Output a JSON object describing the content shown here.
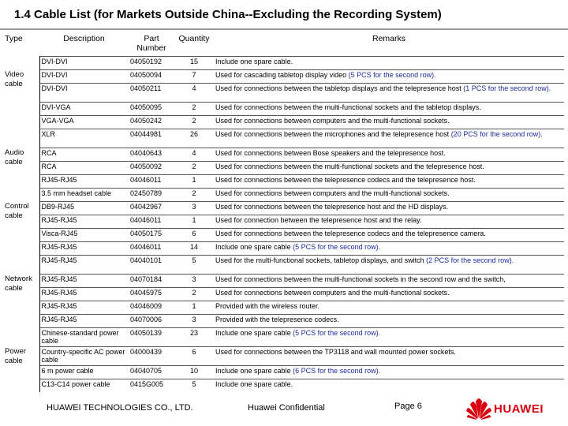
{
  "title": "1.4 Cable List (for Markets Outside China--Excluding the Recording System)",
  "headers": {
    "type": "Type",
    "description": "Description",
    "part_number": "Part Number",
    "quantity": "Quantity",
    "remarks": "Remarks"
  },
  "groups": {
    "video": "Video cable",
    "audio": "Audio cable",
    "control": "Control cable",
    "network": "Network cable",
    "power": "Power cable"
  },
  "rows": [
    {
      "desc": "DVI-DVI",
      "part": "04050192",
      "qty": "15",
      "remarks": "Include one spare cable.",
      "extra": ""
    },
    {
      "desc": "DVI-DVI",
      "part": "04050094",
      "qty": "7",
      "remarks": "Used for cascading tabletop display video ",
      "extra": "(5 PCS for the second row)."
    },
    {
      "desc": "DVI-DVI",
      "part": "04050211",
      "qty": "4",
      "remarks": "Used for connections between the tabletop displays and the telepresence host ",
      "extra": "(1 PCS for the second row)."
    },
    {
      "desc": "DVI-VGA",
      "part": "04050095",
      "qty": "2",
      "remarks": "Used for connections between the multi-functional sockets and the tabletop displays.",
      "extra": ""
    },
    {
      "desc": "VGA-VGA",
      "part": "04050242",
      "qty": "2",
      "remarks": "Used for connections between computers and the multi-functional sockets.",
      "extra": ""
    },
    {
      "desc": "XLR",
      "part": "04044981",
      "qty": "26",
      "remarks": "Used for connections between the microphones and the telepresence host ",
      "extra": "(20 PCS for the second row)."
    },
    {
      "desc": "RCA",
      "part": "04040643",
      "qty": "4",
      "remarks": "Used for connections between Bose speakers and the telepresence host.",
      "extra": ""
    },
    {
      "desc": "RCA",
      "part": "04050092",
      "qty": "2",
      "remarks": "Used for connections between the multi-functional sockets and the telepresence host.",
      "extra": ""
    },
    {
      "desc": "RJ45-RJ45",
      "part": "04046011",
      "qty": "1",
      "remarks": "Used for connections between the telepresence codecs and the telepresence host.",
      "extra": ""
    },
    {
      "desc": "3.5 mm headset cable",
      "part": "02450789",
      "qty": "2",
      "remarks": "Used for connections between computers and the multi-functional sockets.",
      "extra": ""
    },
    {
      "desc": "DB9-RJ45",
      "part": "04042967",
      "qty": "3",
      "remarks": "Used for connections between the telepresence host and the HD displays.",
      "extra": ""
    },
    {
      "desc": "RJ45-RJ45",
      "part": "04046011",
      "qty": "1",
      "remarks": "Used for connection between the telepresence host and the relay.",
      "extra": ""
    },
    {
      "desc": "Visca-RJ45",
      "part": "04050175",
      "qty": "6",
      "remarks": "Used for connections between the telepresence codecs and the telepresence camera.",
      "extra": ""
    },
    {
      "desc": "RJ45-RJ45",
      "part": "04046011",
      "qty": "14",
      "remarks": "Include one spare cable ",
      "extra": "(5 PCS for the second row)."
    },
    {
      "desc": "RJ45-RJ45",
      "part": "04040101",
      "qty": "5",
      "remarks": "Used for the multi-functional sockets, tabletop displays, and switch ",
      "extra": "(2 PCS for the second row)."
    },
    {
      "desc": "RJ45-RJ45",
      "part": "04070184",
      "qty": "3",
      "remarks": "Used for connections between the multi-functional sockets in the second row and the switch,",
      "extra": ""
    },
    {
      "desc": "RJ45-RJ45",
      "part": "04045975",
      "qty": "2",
      "remarks": "Used for connections between computers and the multi-functional sockets.",
      "extra": ""
    },
    {
      "desc": "RJ45-RJ45",
      "part": "04046009",
      "qty": "1",
      "remarks": "Provided with the wireless router.",
      "extra": ""
    },
    {
      "desc": "RJ45-RJ45",
      "part": "04070006",
      "qty": "3",
      "remarks": "Provided with the telepresence codecs.",
      "extra": ""
    },
    {
      "desc": "Chinese-standard power cable",
      "part": "04050139",
      "qty": "23",
      "remarks": "Include one spare cable ",
      "extra": "(5 PCS for the second row)."
    },
    {
      "desc": "Country-specific AC power cable",
      "part": "04000439",
      "qty": "6",
      "remarks": "Used for connections between the TP3118 and wall mounted power sockets.",
      "extra": ""
    },
    {
      "desc": "6 m power cable",
      "part": "04040705",
      "qty": "10",
      "remarks": "Include one spare cable ",
      "extra": "(6 PCS for the second row)."
    },
    {
      "desc": "C13-C14 power cable",
      "part": "0415G005",
      "qty": "5",
      "remarks": "Include one spare cable.",
      "extra": ""
    }
  ],
  "footer": {
    "company": "HUAWEI TECHNOLOGIES CO., LTD.",
    "confidential": "Huawei Confidential",
    "page": "Page 6",
    "logo": "HUAWEI"
  },
  "colors": {
    "highlight": "#1b2a9c",
    "brand": "#d7000f"
  }
}
